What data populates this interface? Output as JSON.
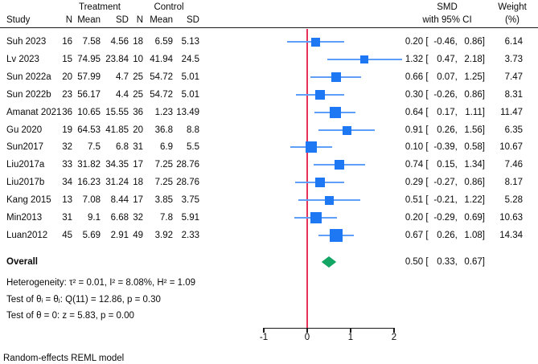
{
  "chart_data": {
    "type": "forest",
    "headers": {
      "treatment": "Treatment",
      "control": "Control",
      "study": "Study",
      "n": "N",
      "mean": "Mean",
      "sd": "SD",
      "smd_line1": "SMD",
      "smd_line2": "with 95% CI",
      "weight_line1": "Weight",
      "weight_line2": "(%)"
    },
    "format": {
      "open": " [",
      "sep": ",",
      "close": "]"
    },
    "studies": [
      {
        "study": "Suh 2023",
        "t_n": "16",
        "t_mean": "7.58",
        "t_sd": "4.56",
        "c_n": "18",
        "c_mean": "6.59",
        "c_sd": "5.13",
        "est": "0.20",
        "lo": "-0.46",
        "hi": "0.86",
        "weight": "6.14"
      },
      {
        "study": "Lv 2023",
        "t_n": "15",
        "t_mean": "74.95",
        "t_sd": "23.84",
        "c_n": "10",
        "c_mean": "41.94",
        "c_sd": "24.5",
        "est": "1.32",
        "lo": "0.47",
        "hi": "2.18",
        "weight": "3.73"
      },
      {
        "study": "Sun 2022a",
        "t_n": "20",
        "t_mean": "57.99",
        "t_sd": "4.7",
        "c_n": "25",
        "c_mean": "54.72",
        "c_sd": "5.01",
        "est": "0.66",
        "lo": "0.07",
        "hi": "1.25",
        "weight": "7.47"
      },
      {
        "study": "Sun 2022b",
        "t_n": "23",
        "t_mean": "56.17",
        "t_sd": "4.4",
        "c_n": "25",
        "c_mean": "54.72",
        "c_sd": "5.01",
        "est": "0.30",
        "lo": "-0.26",
        "hi": "0.86",
        "weight": "8.31"
      },
      {
        "study": "Amanat 2021",
        "t_n": "36",
        "t_mean": "10.65",
        "t_sd": "15.55",
        "c_n": "36",
        "c_mean": "1.23",
        "c_sd": "13.49",
        "est": "0.64",
        "lo": "0.17",
        "hi": "1.11",
        "weight": "11.47"
      },
      {
        "study": "Gu 2020",
        "t_n": "19",
        "t_mean": "64.53",
        "t_sd": "41.85",
        "c_n": "20",
        "c_mean": "36.8",
        "c_sd": "8.8",
        "est": "0.91",
        "lo": "0.26",
        "hi": "1.56",
        "weight": "6.35"
      },
      {
        "study": "Sun2017",
        "t_n": "32",
        "t_mean": "7.5",
        "t_sd": "6.8",
        "c_n": "31",
        "c_mean": "6.9",
        "c_sd": "5.5",
        "est": "0.10",
        "lo": "-0.39",
        "hi": "0.58",
        "weight": "10.67"
      },
      {
        "study": "Liu2017a",
        "t_n": "33",
        "t_mean": "31.82",
        "t_sd": "34.35",
        "c_n": "17",
        "c_mean": "7.25",
        "c_sd": "28.76",
        "est": "0.74",
        "lo": "0.15",
        "hi": "1.34",
        "weight": "7.46"
      },
      {
        "study": "Liu2017b",
        "t_n": "34",
        "t_mean": "16.23",
        "t_sd": "31.24",
        "c_n": "18",
        "c_mean": "7.25",
        "c_sd": "28.76",
        "est": "0.29",
        "lo": "-0.27",
        "hi": "0.86",
        "weight": "8.17"
      },
      {
        "study": "Kang 2015",
        "t_n": "13",
        "t_mean": "7.08",
        "t_sd": "8.44",
        "c_n": "17",
        "c_mean": "3.85",
        "c_sd": "3.75",
        "est": "0.51",
        "lo": "-0.21",
        "hi": "1.22",
        "weight": "5.28"
      },
      {
        "study": "Min2013",
        "t_n": "31",
        "t_mean": "9.1",
        "t_sd": "6.68",
        "c_n": "32",
        "c_mean": "7.8",
        "c_sd": "5.91",
        "est": "0.20",
        "lo": "-0.29",
        "hi": "0.69",
        "weight": "10.63"
      },
      {
        "study": "Luan2012",
        "t_n": "45",
        "t_mean": "5.69",
        "t_sd": "2.91",
        "c_n": "49",
        "c_mean": "3.92",
        "c_sd": "2.33",
        "est": "0.67",
        "lo": "0.26",
        "hi": "1.08",
        "weight": "14.34"
      }
    ],
    "overall": {
      "label": "Overall",
      "est": "0.50",
      "lo": "0.33",
      "hi": "0.67"
    },
    "notes": [
      "Heterogeneity: τ² = 0.01, I² = 8.08%, H² = 1.09",
      "Test of θᵢ = θⱼ: Q(11) = 12.86, p = 0.30",
      "Test of θ = 0: z = 5.83, p = 0.00"
    ],
    "footer": "Random-effects REML model",
    "axis": {
      "ticks": [
        -1,
        0,
        1,
        2
      ],
      "zero_ref_line": 0
    },
    "colors": {
      "marker_square": "#1f78f3",
      "ci_line": "#5f9ff7",
      "zero_line": "#e63259",
      "diamond": "#13a564",
      "axis": "#1a1a1a"
    }
  }
}
